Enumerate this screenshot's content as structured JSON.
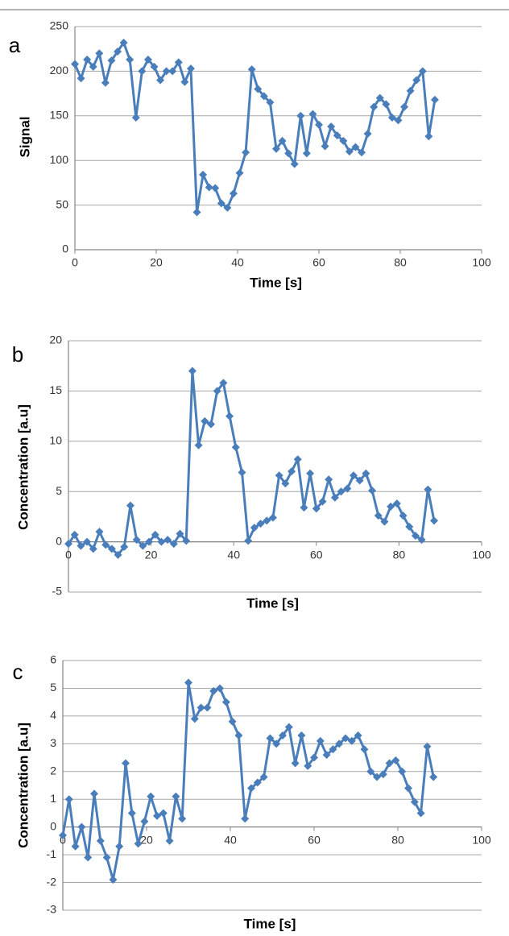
{
  "chart_data": [
    {
      "type": "line",
      "panel_label": "a",
      "xlabel": "Time [s]",
      "ylabel": "Signal",
      "color": "#4a7ebb",
      "grid": true,
      "xlim": [
        0,
        100
      ],
      "xticks": [
        0,
        20,
        40,
        60,
        80,
        100
      ],
      "ylim": [
        0,
        250
      ],
      "yticks": [
        0,
        50,
        100,
        150,
        200,
        250
      ],
      "x": [
        0,
        1.5,
        3,
        4.5,
        6,
        7.5,
        9,
        10.5,
        12,
        13.5,
        15,
        16.5,
        18,
        19.5,
        21,
        22.5,
        24,
        25.5,
        27,
        28.5,
        30,
        31.5,
        33,
        34.5,
        36,
        37.5,
        39,
        40.5,
        42,
        43.5,
        45,
        46.5,
        48,
        49.5,
        51,
        52.5,
        54,
        55.5,
        57,
        58.5,
        60,
        61.5,
        63,
        64.5,
        66,
        67.5,
        69,
        70.5,
        72,
        73.5,
        75,
        76.5,
        78,
        79.5,
        81,
        82.5,
        84,
        85.5,
        87,
        88.5
      ],
      "values": [
        208,
        192,
        213,
        205,
        220,
        187,
        212,
        222,
        232,
        213,
        148,
        200,
        213,
        205,
        190,
        200,
        200,
        210,
        188,
        203,
        42,
        84,
        70,
        69,
        52,
        47,
        63,
        86,
        109,
        202,
        180,
        172,
        165,
        113,
        122,
        108,
        96,
        150,
        108,
        152,
        140,
        116,
        138,
        128,
        122,
        110,
        115,
        109,
        130,
        160,
        170,
        163,
        148,
        145,
        160,
        178,
        190,
        200,
        127,
        168
      ]
    },
    {
      "type": "line",
      "panel_label": "b",
      "xlabel": "Time [s]",
      "ylabel": "Concentration [a.u]",
      "color": "#4a7ebb",
      "grid": true,
      "xlim": [
        0,
        100
      ],
      "xticks": [
        0,
        20,
        40,
        60,
        80,
        100
      ],
      "ylim": [
        -5,
        20
      ],
      "yticks": [
        -5,
        0,
        5,
        10,
        15,
        20
      ],
      "x": [
        0,
        1.5,
        3,
        4.5,
        6,
        7.5,
        9,
        10.5,
        12,
        13.5,
        15,
        16.5,
        18,
        19.5,
        21,
        22.5,
        24,
        25.5,
        27,
        28.5,
        30,
        31.5,
        33,
        34.5,
        36,
        37.5,
        39,
        40.5,
        42,
        43.5,
        45,
        46.5,
        48,
        49.5,
        51,
        52.5,
        54,
        55.5,
        57,
        58.5,
        60,
        61.5,
        63,
        64.5,
        66,
        67.5,
        69,
        70.5,
        72,
        73.5,
        75,
        76.5,
        78,
        79.5,
        81,
        82.5,
        84,
        85.5,
        87,
        88.5
      ],
      "values": [
        -0.2,
        0.7,
        -0.4,
        0,
        -0.7,
        1,
        -0.3,
        -0.7,
        -1.3,
        -0.5,
        3.6,
        0.2,
        -0.4,
        0,
        0.7,
        0,
        0.2,
        -0.2,
        0.8,
        0.1,
        17,
        9.6,
        12,
        11.7,
        15,
        15.8,
        12.5,
        9.4,
        6.9,
        0.1,
        1.4,
        1.8,
        2.1,
        2.4,
        6.6,
        5.8,
        7,
        8.2,
        3.4,
        6.8,
        3.3,
        4,
        6.2,
        4.4,
        5,
        5.3,
        6.6,
        6.1,
        6.8,
        5.1,
        2.6,
        2,
        3.5,
        3.8,
        2.6,
        1.5,
        0.6,
        0.2,
        5.2,
        2.1
      ]
    },
    {
      "type": "line",
      "panel_label": "c",
      "xlabel": "Time [s]",
      "ylabel": "Concentration [a.u]",
      "color": "#4a7ebb",
      "grid": true,
      "xlim": [
        0,
        100
      ],
      "xticks": [
        0,
        20,
        40,
        60,
        80,
        100
      ],
      "ylim": [
        -3,
        6
      ],
      "yticks": [
        -3,
        -2,
        -1,
        0,
        1,
        2,
        3,
        4,
        5,
        6
      ],
      "x": [
        0,
        1.5,
        3,
        4.5,
        6,
        7.5,
        9,
        10.5,
        12,
        13.5,
        15,
        16.5,
        18,
        19.5,
        21,
        22.5,
        24,
        25.5,
        27,
        28.5,
        30,
        31.5,
        33,
        34.5,
        36,
        37.5,
        39,
        40.5,
        42,
        43.5,
        45,
        46.5,
        48,
        49.5,
        51,
        52.5,
        54,
        55.5,
        57,
        58.5,
        60,
        61.5,
        63,
        64.5,
        66,
        67.5,
        69,
        70.5,
        72,
        73.5,
        75,
        76.5,
        78,
        79.5,
        81,
        82.5,
        84,
        85.5,
        87,
        88.5
      ],
      "values": [
        -0.3,
        1,
        -0.7,
        0,
        -1.1,
        1.2,
        -0.5,
        -1.1,
        -1.9,
        -0.7,
        2.3,
        0.5,
        -0.6,
        0.2,
        1.1,
        0.4,
        0.5,
        -0.5,
        1.1,
        0.3,
        5.2,
        3.9,
        4.3,
        4.3,
        4.9,
        5,
        4.5,
        3.8,
        3.3,
        0.3,
        1.4,
        1.6,
        1.8,
        3.2,
        3,
        3.3,
        3.6,
        2.3,
        3.3,
        2.2,
        2.5,
        3.1,
        2.6,
        2.8,
        3,
        3.2,
        3.1,
        3.3,
        2.8,
        2,
        1.8,
        1.9,
        2.3,
        2.4,
        2,
        1.4,
        0.9,
        0.5,
        2.9,
        1.8
      ]
    }
  ]
}
